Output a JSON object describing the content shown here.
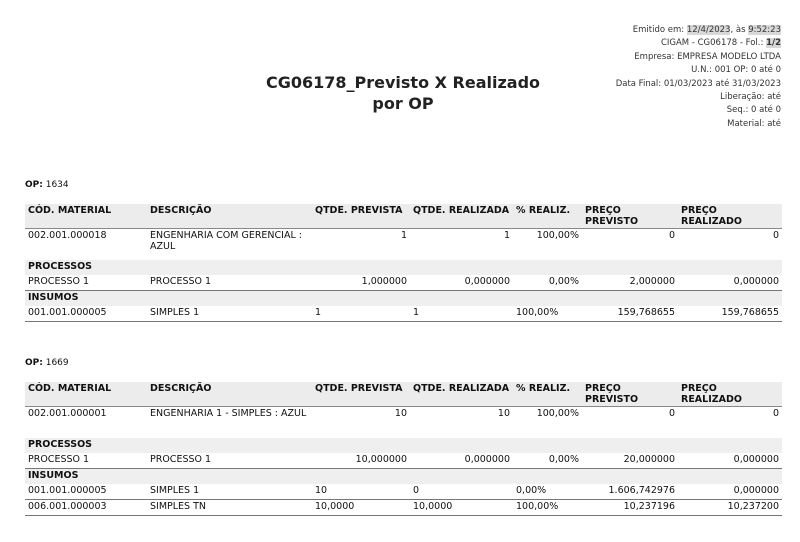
{
  "header": {
    "title_line1": "CG06178_Previsto X Realizado",
    "title_line2": "por OP",
    "emitted": {
      "label": "Emitido em:",
      "date": "12/4/2023",
      "sep": ", às",
      "time": "9:52:23"
    },
    "folio": {
      "label": "CIGAM - CG06178 - Fol.:",
      "page": "1/2"
    },
    "lines": [
      "Empresa: EMPRESA MODELO LTDA",
      "U.N.: 001 OP: 0 até 0",
      "Data Final: 01/03/2023 até 31/03/2023",
      "Liberação:  até",
      "Seq.: 0 até 0",
      "Material:  até"
    ]
  },
  "sections": [
    {
      "op_label": "OP:",
      "op": "1634",
      "columns": [
        "CÓD. MATERIAL",
        "DESCRIÇÃO",
        "QTDE. PREVISTA",
        "QTDE. REALIZADA",
        "% REALIZ.",
        "PREÇO PREVISTO",
        "PREÇO REALIZADO"
      ],
      "main_row": [
        "002.001.000018",
        "ENGENHARIA COM GERENCIAL : AZUL",
        "1",
        "1",
        "100,00%",
        "0",
        "0"
      ],
      "processos_label": "PROCESSOS",
      "processos": [
        [
          "PROCESSO 1",
          "PROCESSO 1",
          "1,000000",
          "0,000000",
          "0,00%",
          "2,000000",
          "0,000000"
        ]
      ],
      "insumos_label": "INSUMOS",
      "insumos": [
        [
          "001.001.000005",
          "SIMPLES 1",
          "1",
          "1",
          "100,00%",
          "159,768655",
          "159,768655"
        ]
      ]
    },
    {
      "op_label": "OP:",
      "op": "1669",
      "columns": [
        "CÓD. MATERIAL",
        "DESCRIÇÃO",
        "QTDE. PREVISTA",
        "QTDE. REALIZADA",
        "% REALIZ.",
        "PREÇO PREVISTO",
        "PREÇO REALIZADO"
      ],
      "main_row": [
        "002.001.000001",
        "ENGENHARIA 1 - SIMPLES  : AZUL",
        "10",
        "10",
        "100,00%",
        "0",
        "0"
      ],
      "processos_label": "PROCESSOS",
      "processos": [
        [
          "PROCESSO 1",
          "PROCESSO 1",
          "10,000000",
          "0,000000",
          "0,00%",
          "20,000000",
          "0,000000"
        ]
      ],
      "insumos_label": "INSUMOS",
      "insumos": [
        [
          "001.001.000005",
          "SIMPLES 1",
          "10",
          "0",
          "0,00%",
          "1.606,742976",
          "0,000000"
        ],
        [
          "006.001.000003",
          "SIMPLES TN",
          "10,0000",
          "10,0000",
          "100,00%",
          "10,237196",
          "10,237200"
        ]
      ]
    }
  ]
}
